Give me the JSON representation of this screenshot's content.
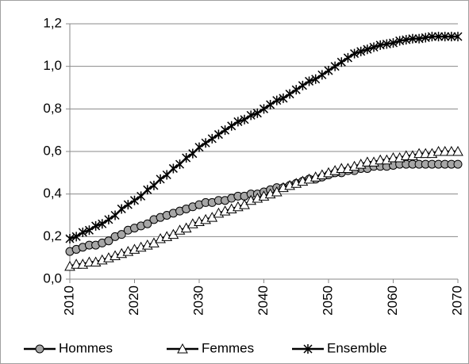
{
  "chart_data": {
    "type": "line",
    "x": [
      2010,
      2011,
      2012,
      2013,
      2014,
      2015,
      2016,
      2017,
      2018,
      2019,
      2020,
      2021,
      2022,
      2023,
      2024,
      2025,
      2026,
      2027,
      2028,
      2029,
      2030,
      2031,
      2032,
      2033,
      2034,
      2035,
      2036,
      2037,
      2038,
      2039,
      2040,
      2041,
      2042,
      2043,
      2044,
      2045,
      2046,
      2047,
      2048,
      2049,
      2050,
      2051,
      2052,
      2053,
      2054,
      2055,
      2056,
      2057,
      2058,
      2059,
      2060,
      2061,
      2062,
      2063,
      2064,
      2065,
      2066,
      2067,
      2068,
      2069,
      2070
    ],
    "series": [
      {
        "name": "Hommes",
        "color": "#000000",
        "marker": "circle",
        "marker_fill": "#a6a6a6",
        "values": [
          0.13,
          0.14,
          0.15,
          0.16,
          0.16,
          0.17,
          0.18,
          0.2,
          0.21,
          0.23,
          0.24,
          0.25,
          0.26,
          0.28,
          0.29,
          0.3,
          0.31,
          0.32,
          0.33,
          0.34,
          0.35,
          0.36,
          0.36,
          0.37,
          0.37,
          0.38,
          0.39,
          0.39,
          0.4,
          0.4,
          0.41,
          0.42,
          0.43,
          0.43,
          0.44,
          0.45,
          0.46,
          0.47,
          0.47,
          0.48,
          0.49,
          0.5,
          0.5,
          0.51,
          0.51,
          0.52,
          0.52,
          0.53,
          0.53,
          0.53,
          0.535,
          0.54,
          0.54,
          0.54,
          0.54,
          0.54,
          0.54,
          0.54,
          0.54,
          0.54,
          0.54
        ]
      },
      {
        "name": "Femmes",
        "color": "#000000",
        "marker": "triangle",
        "marker_fill": "#ffffff",
        "values": [
          0.06,
          0.07,
          0.07,
          0.08,
          0.08,
          0.09,
          0.1,
          0.11,
          0.12,
          0.13,
          0.14,
          0.15,
          0.16,
          0.17,
          0.19,
          0.2,
          0.21,
          0.23,
          0.24,
          0.26,
          0.27,
          0.28,
          0.29,
          0.31,
          0.32,
          0.33,
          0.34,
          0.35,
          0.37,
          0.38,
          0.39,
          0.4,
          0.41,
          0.43,
          0.44,
          0.45,
          0.46,
          0.47,
          0.48,
          0.49,
          0.5,
          0.51,
          0.52,
          0.52,
          0.53,
          0.54,
          0.55,
          0.55,
          0.56,
          0.56,
          0.57,
          0.57,
          0.58,
          0.58,
          0.59,
          0.59,
          0.59,
          0.6,
          0.6,
          0.6,
          0.6
        ]
      },
      {
        "name": "Ensemble",
        "color": "#000000",
        "marker": "asterisk",
        "marker_fill": "#000000",
        "values": [
          0.19,
          0.2,
          0.22,
          0.23,
          0.25,
          0.26,
          0.28,
          0.3,
          0.33,
          0.35,
          0.37,
          0.39,
          0.42,
          0.44,
          0.47,
          0.49,
          0.52,
          0.54,
          0.57,
          0.59,
          0.62,
          0.64,
          0.66,
          0.68,
          0.7,
          0.72,
          0.74,
          0.75,
          0.77,
          0.78,
          0.8,
          0.82,
          0.84,
          0.85,
          0.87,
          0.89,
          0.91,
          0.93,
          0.94,
          0.96,
          0.98,
          1.0,
          1.02,
          1.04,
          1.06,
          1.07,
          1.08,
          1.09,
          1.1,
          1.105,
          1.11,
          1.12,
          1.125,
          1.13,
          1.13,
          1.135,
          1.14,
          1.14,
          1.14,
          1.14,
          1.14
        ]
      }
    ],
    "xlim": [
      2010,
      2070
    ],
    "xticks": [
      2010,
      2020,
      2030,
      2040,
      2050,
      2060,
      2070
    ],
    "ylim": [
      0,
      1.2
    ],
    "yticks": [
      {
        "value": 0,
        "label": "0,0"
      },
      {
        "value": 0.2,
        "label": "0,2"
      },
      {
        "value": 0.4,
        "label": "0,4"
      },
      {
        "value": 0.6,
        "label": "0,6"
      },
      {
        "value": 0.8,
        "label": "0,8"
      },
      {
        "value": 1.0,
        "label": "1,0"
      },
      {
        "value": 1.2,
        "label": "1,2"
      }
    ],
    "grid": true,
    "legend": "bottom"
  }
}
